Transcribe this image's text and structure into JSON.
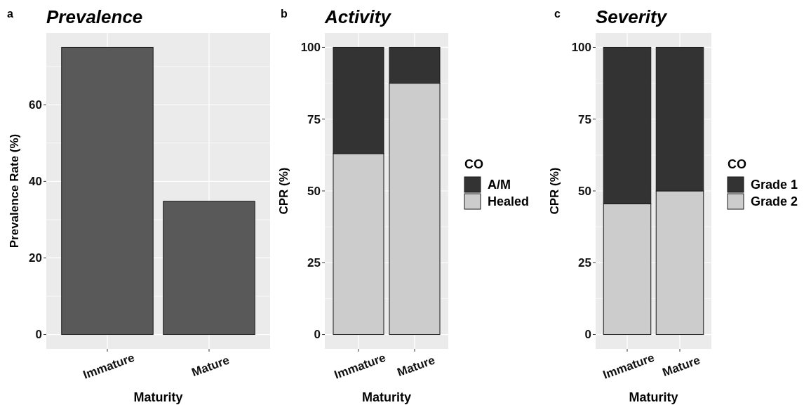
{
  "chart_data": [
    {
      "type": "bar",
      "title": "Prevalence",
      "xlabel": "Maturity",
      "ylabel": "Prevalence Rate (%)",
      "annotations": [
        "a"
      ],
      "categories": [
        "Immature",
        "Mature"
      ],
      "values": [
        75,
        34.8
      ],
      "color": "#595959",
      "ylim": [
        -3.75,
        78.75
      ],
      "yticks": [
        0,
        20,
        40,
        60
      ],
      "grid": true
    },
    {
      "type": "bar",
      "title": "Activity",
      "xlabel": "Maturity",
      "ylabel": "CPR (%)",
      "annotations": [
        "b"
      ],
      "categories": [
        "Immature",
        "Mature"
      ],
      "stacked": true,
      "legend": "right",
      "legend_title": "CO",
      "series": [
        {
          "name": "Healed",
          "color": "#cccccc",
          "values": [
            63,
            87.5
          ]
        },
        {
          "name": "A/M",
          "color": "#333333",
          "values": [
            37,
            12.5
          ]
        }
      ],
      "ylim": [
        -5,
        105
      ],
      "yticks": [
        0,
        25,
        50,
        75,
        100
      ],
      "grid": true
    },
    {
      "type": "bar",
      "title": "Severity",
      "xlabel": "Maturity",
      "ylabel": "CPR (%)",
      "annotations": [
        "c"
      ],
      "categories": [
        "Immature",
        "Mature"
      ],
      "stacked": true,
      "legend": "right",
      "legend_title": "CO",
      "series": [
        {
          "name": "Grade 2",
          "color": "#cccccc",
          "values": [
            45.5,
            50
          ]
        },
        {
          "name": "Grade 1",
          "color": "#333333",
          "values": [
            54.5,
            50
          ]
        }
      ],
      "ylim": [
        -5,
        105
      ],
      "yticks": [
        0,
        25,
        50,
        75,
        100
      ],
      "grid": true
    }
  ]
}
